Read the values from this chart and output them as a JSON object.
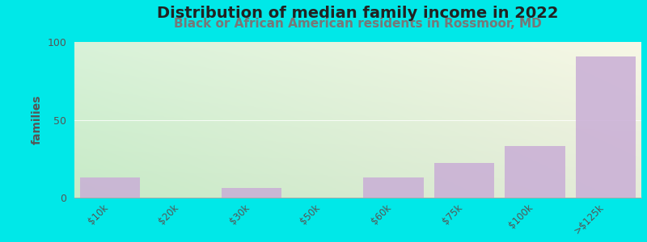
{
  "title": "Distribution of median family income in 2022",
  "subtitle": "Black or African American residents in Rossmoor, MD",
  "categories": [
    "$10k",
    "$20k",
    "$30k",
    "$50k",
    "$60k",
    "$75k",
    "$100k",
    ">$125k"
  ],
  "values": [
    13,
    0,
    6,
    0,
    13,
    22,
    33,
    91
  ],
  "bar_color": "#c9aed6",
  "ylabel": "families",
  "ylim": [
    0,
    100
  ],
  "yticks": [
    0,
    50,
    100
  ],
  "background_outer": "#00e8e8",
  "bg_top_left": "#d8eed8",
  "bg_top_right": "#f0f0e0",
  "bg_bottom_left": "#c8e8c8",
  "bg_bottom_right": "#e8e8d8",
  "title_fontsize": 14,
  "subtitle_fontsize": 11,
  "ylabel_fontsize": 10,
  "title_color": "#222222",
  "subtitle_color": "#777777",
  "ylabel_color": "#555555",
  "tick_color": "#555555"
}
